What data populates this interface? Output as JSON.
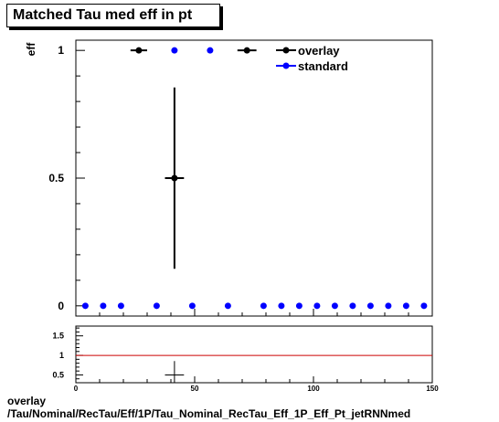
{
  "title": "Matched Tau med eff in pt",
  "footer": {
    "line1": "overlay",
    "line2": "/Tau/Nominal/RecTau/Eff/1P/Tau_Nominal_RecTau_Eff_1P_Eff_Pt_jetRNNmed"
  },
  "colors": {
    "overlay": "#000000",
    "standard": "#0000ff",
    "ratio_line": "#cc0000"
  },
  "chart_data": [
    {
      "type": "scatter",
      "ylabel": "eff",
      "xlim": [
        0,
        150
      ],
      "ylim": [
        -0.04,
        1.04
      ],
      "y_ticks": [
        0,
        0.5,
        1
      ],
      "y_tick_labels": [
        "0",
        "0.5",
        "1"
      ],
      "legend_position": "top-right",
      "series": [
        {
          "name": "overlay",
          "points": [
            {
              "x": 26.5,
              "xerr": 3.5,
              "y": 1.0,
              "yerr": 0
            },
            {
              "x": 41.5,
              "xerr": 4.0,
              "y": 0.5,
              "yerr": 0.355
            },
            {
              "x": 72.0,
              "xerr": 4.0,
              "y": 1.0,
              "yerr": 0
            }
          ]
        },
        {
          "name": "standard",
          "points": [
            {
              "x": 4,
              "y": 0
            },
            {
              "x": 11.5,
              "y": 0
            },
            {
              "x": 19,
              "y": 0
            },
            {
              "x": 34,
              "y": 0
            },
            {
              "x": 41.5,
              "y": 1
            },
            {
              "x": 49,
              "y": 0
            },
            {
              "x": 56.5,
              "y": 1
            },
            {
              "x": 64,
              "y": 0
            },
            {
              "x": 79,
              "y": 0
            },
            {
              "x": 86.5,
              "y": 0
            },
            {
              "x": 94,
              "y": 0
            },
            {
              "x": 101.5,
              "y": 0
            },
            {
              "x": 109,
              "y": 0
            },
            {
              "x": 116.5,
              "y": 0
            },
            {
              "x": 124,
              "y": 0
            },
            {
              "x": 131.5,
              "y": 0
            },
            {
              "x": 139,
              "y": 0
            },
            {
              "x": 146.5,
              "y": 0
            }
          ]
        }
      ]
    },
    {
      "type": "scatter",
      "xlim": [
        0,
        150
      ],
      "ylim": [
        0.3,
        1.75
      ],
      "y_ticks": [
        0.5,
        1,
        1.5
      ],
      "y_tick_labels": [
        "0.5",
        "1",
        "1.5"
      ],
      "x_ticks": [
        0,
        50,
        100,
        150
      ],
      "x_tick_labels": [
        "0",
        "50",
        "100",
        "150"
      ],
      "reference_line": 1,
      "series": [
        {
          "points": [
            {
              "x": 41.5,
              "xerr": 4.0,
              "y": 0.5,
              "yerr": 0.355
            }
          ]
        }
      ]
    }
  ]
}
